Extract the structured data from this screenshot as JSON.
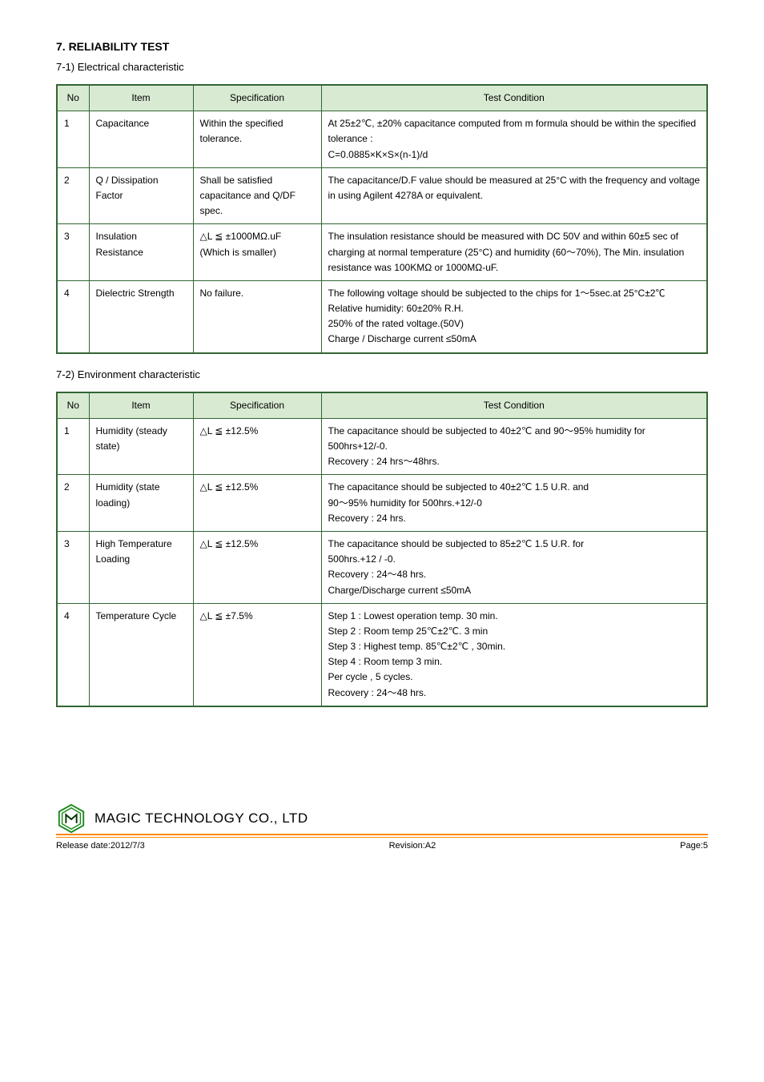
{
  "section_heading": "7. RELIABILITY TEST",
  "table1": {
    "subtitle": "7-1) Electrical characteristic",
    "headers": [
      "No",
      "Item",
      "Specification",
      "Test Condition"
    ],
    "rows": [
      {
        "no": "1",
        "item": "Capacitance",
        "spec": "Within the specified tolerance.",
        "cond": "At 25±2℃, ±20% capacitance computed from m formula should be within the specified tolerance :\n  C=0.0885×K×S×(n-1)/d"
      },
      {
        "no": "2",
        "item": "Q / Dissipation Factor",
        "spec": "Shall be satisfied capacitance and Q/DF spec.",
        "cond": "The capacitance/D.F value should be measured at 25°C with the frequency and voltage in using Agilent 4278A or equivalent."
      },
      {
        "no": "3",
        "item": "Insulation Resistance",
        "spec": "△L ≦ ±1000MΩ.uF\n(Which is smaller)",
        "cond": "The insulation resistance should be measured with DC 50V and within 60±5 sec of charging at normal temperature (25°C) and humidity (60～70%), The Min. insulation resistance was 100KMΩ or 1000MΩ-uF."
      },
      {
        "no": "4",
        "item": "Dielectric Strength",
        "spec": "No failure.",
        "cond": "The following voltage should be subjected to the chips for 1～5sec.at 25°C±2℃ Relative humidity: 60±20% R.H.\n250% of the rated voltage.(50V)\nCharge / Discharge current ≤50mA"
      }
    ]
  },
  "table2": {
    "subtitle": "7-2) Environment characteristic",
    "headers": [
      "No",
      "Item",
      "Specification",
      "Test Condition"
    ],
    "rows": [
      {
        "no": "1",
        "item": "Humidity (steady state)",
        "spec": "△L ≦ ±12.5%",
        "cond": "The capacitance should be subjected to 40±2℃ and 90～95% humidity for 500hrs+12/-0.\nRecovery : 24 hrs～48hrs."
      },
      {
        "no": "2",
        "item": "Humidity (state loading)",
        "spec": "△L ≦ ±12.5%",
        "cond": "The capacitance should be subjected to 40±2℃ 1.5 U.R. and\n90～95% humidity for 500hrs.+12/-0\nRecovery : 24 hrs."
      },
      {
        "no": "3",
        "item": "High Temperature Loading",
        "spec": "△L ≦ ±12.5%",
        "cond": "The capacitance should be subjected to 85±2℃ 1.5 U.R. for\n500hrs.+12 / -0.\nRecovery : 24～48 hrs.\nCharge/Discharge current ≤50mA"
      },
      {
        "no": "4",
        "item": "Temperature Cycle",
        "spec": "△L ≦ ±7.5%",
        "cond": "Step 1 : Lowest operation temp. 30 min.\nStep 2 : Room temp 25℃±2℃. 3 min\nStep 3 : Highest temp. 85℃±2℃ , 30min.\nStep 4 : Room temp 3 min.\nPer cycle , 5 cycles.\nRecovery : 24～48 hrs."
      }
    ]
  },
  "footer": {
    "company": "MAGIC TECHNOLOGY CO., LTD",
    "release": "Release date:2012/7/3",
    "revision": "Revision:A2",
    "page": "Page:5"
  },
  "colors": {
    "table_border": "#336633",
    "header_bg": "#d9ead3",
    "footer_line": "#ff8800",
    "logo_green": "#1a8a1a",
    "logo_dark": "#003300"
  }
}
